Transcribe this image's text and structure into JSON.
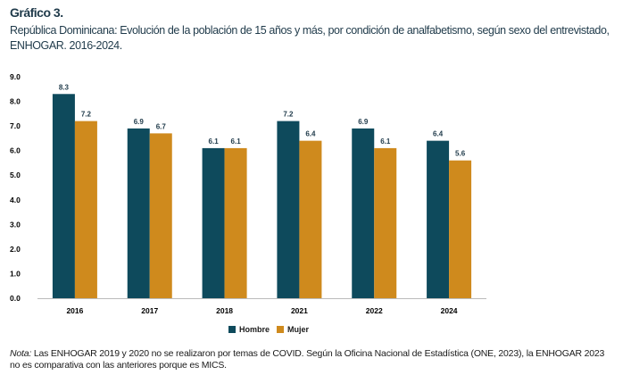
{
  "title": "Gráfico 3.",
  "subtitle": "República Dominicana: Evolución de la población de 15 años y más, por condición de analfabetismo, según sexo del entrevistado, ENHOGAR. 2016-2024.",
  "note_label": "Nota:",
  "note_text": " Las ENHOGAR 2019 y 2020 no se realizaron por temas de COVID. Según la Oficina Nacional de Estadística (ONE, 2023), la ENHOGAR 2023 no es comparativa con las anteriores porque es MICS.",
  "chart_data": {
    "type": "bar",
    "categories": [
      "2016",
      "2017",
      "2018",
      "2021",
      "2022",
      "2024"
    ],
    "series": [
      {
        "name": "Hombre",
        "color": "#0e4a5c",
        "values": [
          8.3,
          6.9,
          6.1,
          7.2,
          6.9,
          6.4
        ]
      },
      {
        "name": "Mujer",
        "color": "#cf8a1d",
        "values": [
          7.2,
          6.7,
          6.1,
          6.4,
          6.1,
          5.6
        ]
      }
    ],
    "ylim": [
      0,
      9
    ],
    "yticks": [
      "0.0",
      "1.0",
      "2.0",
      "3.0",
      "4.0",
      "5.0",
      "6.0",
      "7.0",
      "8.0",
      "9.0"
    ],
    "grid": false,
    "legend": "bottom"
  }
}
